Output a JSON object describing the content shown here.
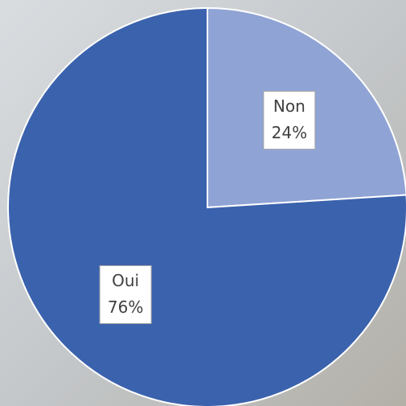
{
  "chart_data": {
    "type": "pie",
    "categories": [
      "Non",
      "Oui"
    ],
    "values": [
      24,
      76
    ],
    "value_labels": [
      "24%",
      "76%"
    ],
    "colors": [
      "#8fa3d5",
      "#3b62ad"
    ]
  }
}
